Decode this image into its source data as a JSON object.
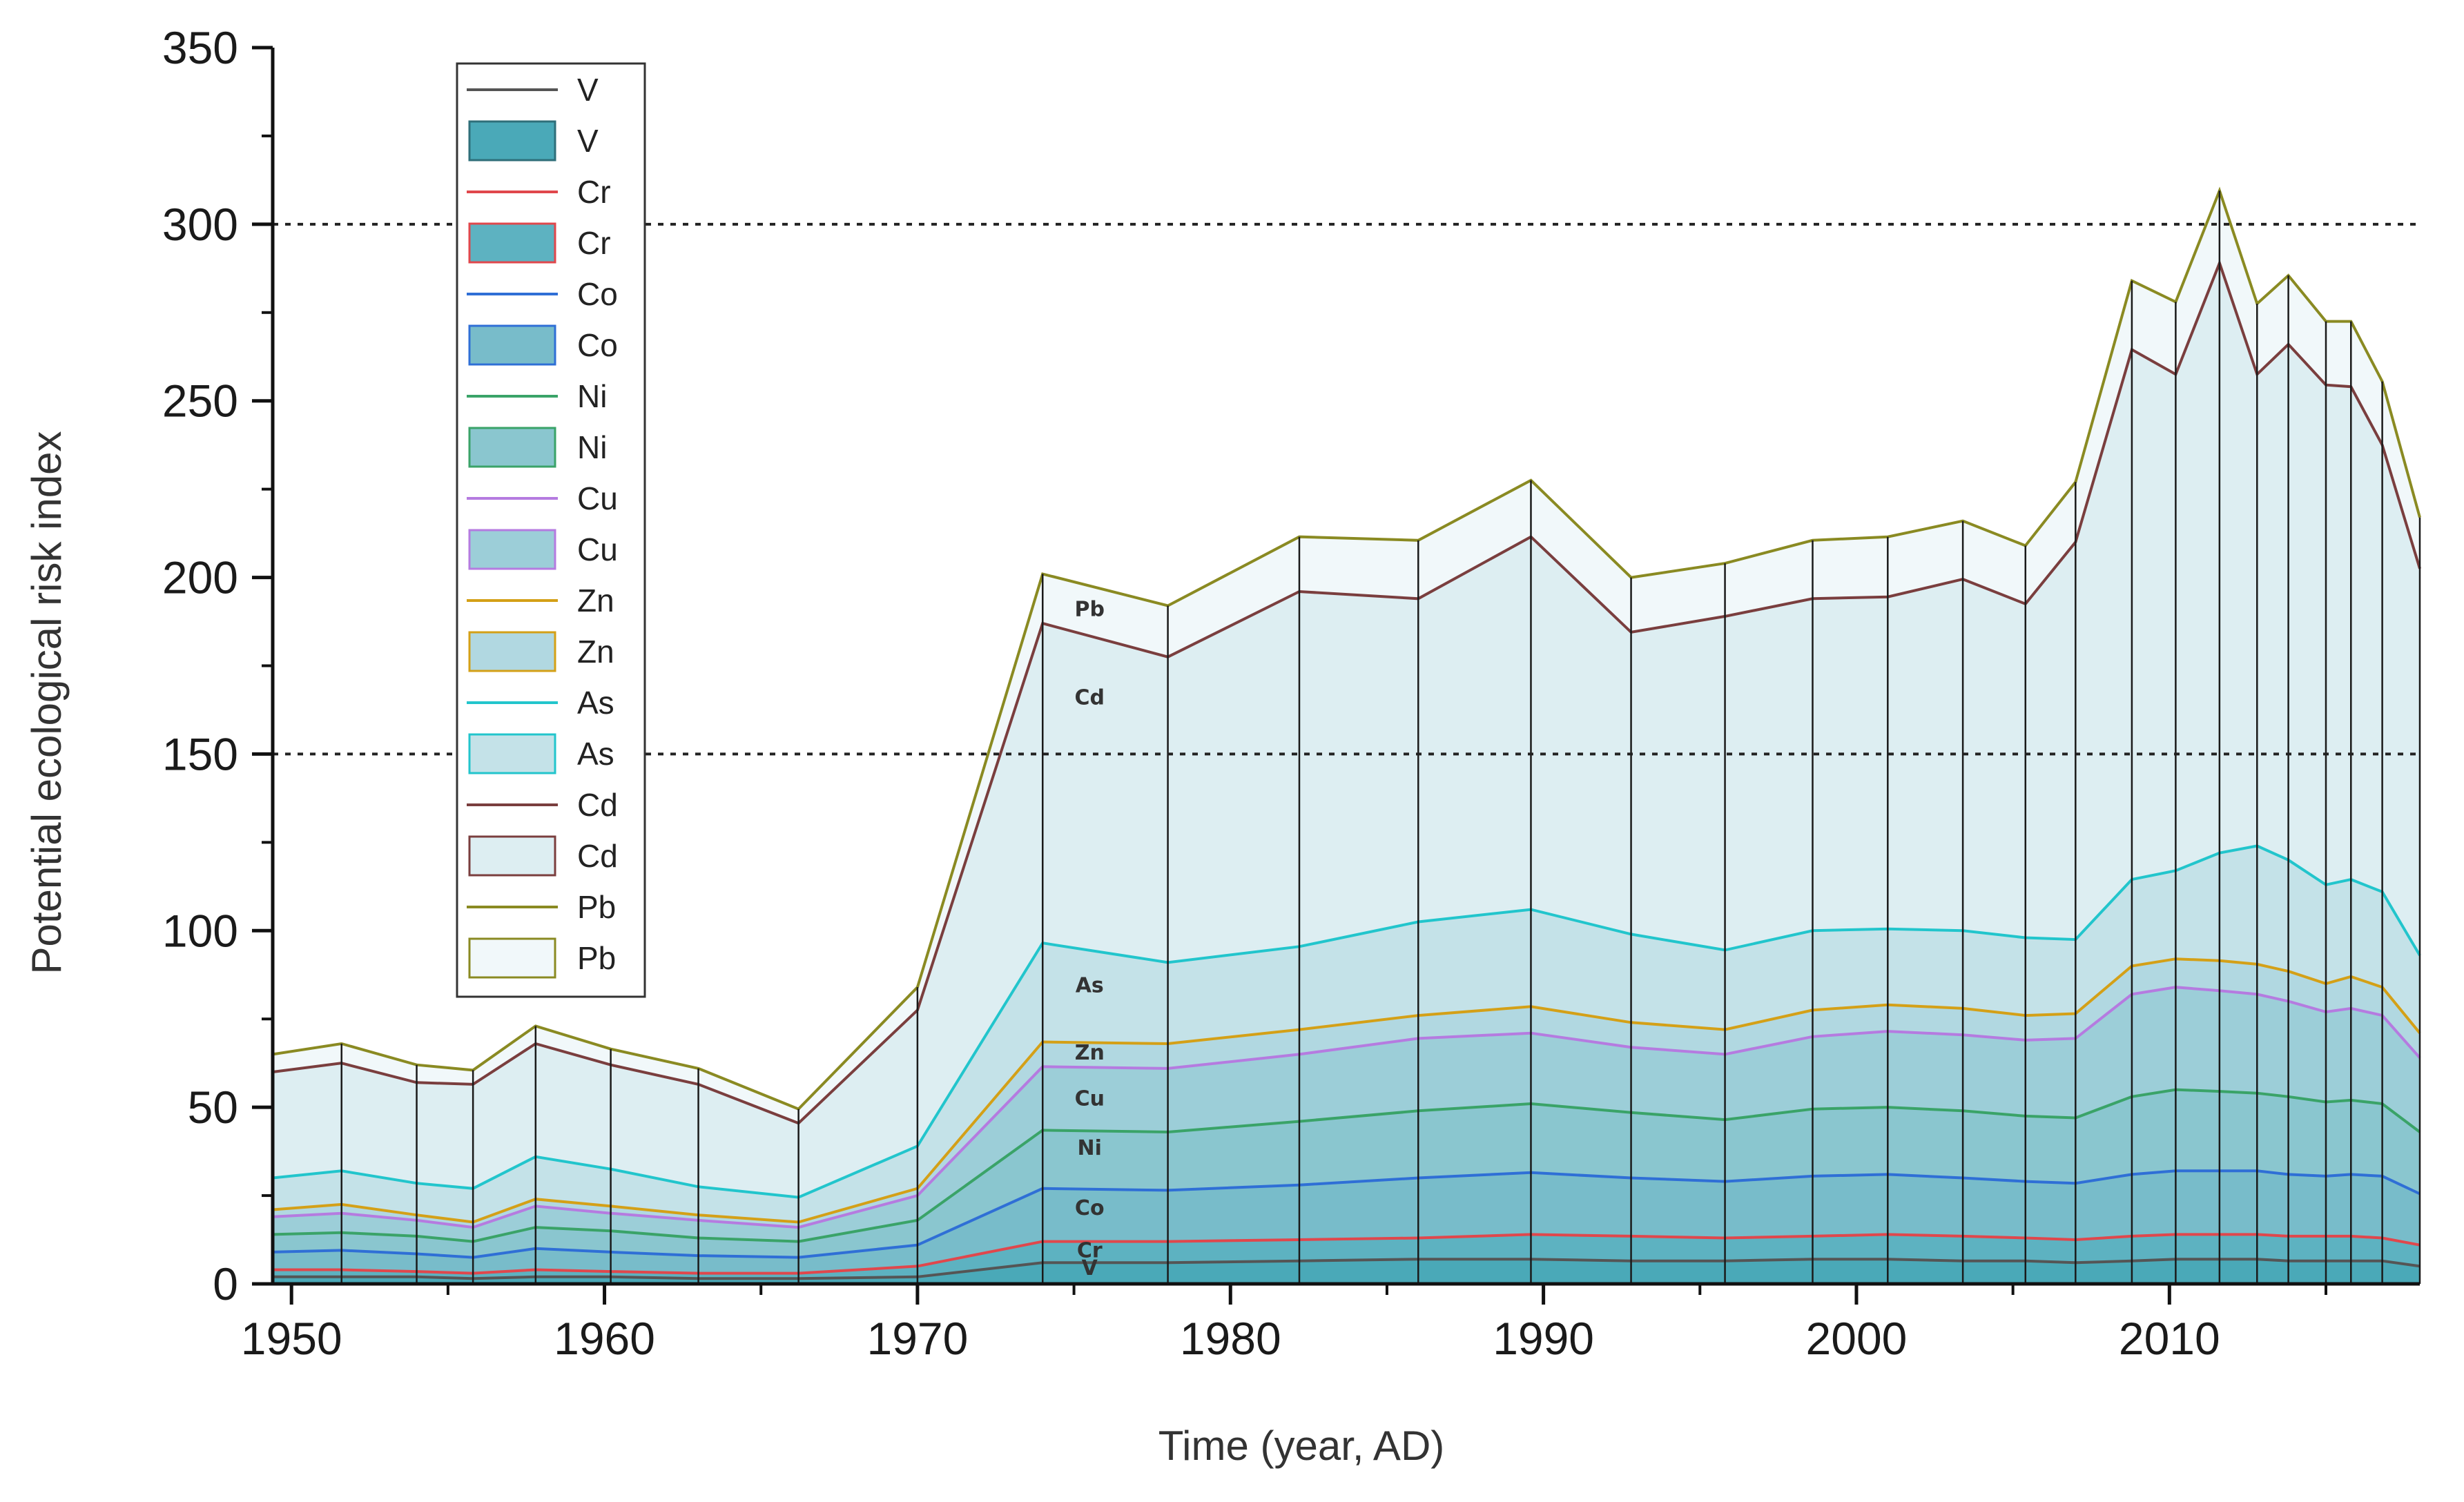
{
  "chart_data": {
    "type": "area",
    "stacked": true,
    "xlabel": "Time (year, AD)",
    "ylabel": "Potential ecological risk index",
    "xlim": [
      1949.4,
      2018
    ],
    "ylim": [
      0,
      350
    ],
    "xticks": [
      1950,
      1960,
      1970,
      1980,
      1990,
      2000,
      2010
    ],
    "yticks": [
      0,
      50,
      100,
      150,
      200,
      250,
      300,
      350
    ],
    "reference_lines": [
      150,
      300
    ],
    "x": [
      1949.4,
      1951.6,
      1954.0,
      1955.8,
      1957.8,
      1960.2,
      1963.0,
      1966.2,
      1970.0,
      1974.0,
      1978.0,
      1982.2,
      1986.0,
      1989.6,
      1992.8,
      1995.8,
      1998.6,
      2001.0,
      2003.4,
      2005.4,
      2007.0,
      2008.8,
      2010.2,
      2011.6,
      2012.8,
      2013.8,
      2015.0,
      2015.8,
      2016.8,
      2018.0
    ],
    "series": [
      {
        "name": "V",
        "line_color": "#555555",
        "fill_color": "#4aa9b8",
        "label": "V",
        "cumulative": [
          2,
          2,
          2,
          1.5,
          2,
          2,
          1.5,
          1.5,
          2,
          6,
          6,
          6.5,
          7,
          7,
          6.5,
          6.5,
          7,
          7,
          6.5,
          6.5,
          6,
          6.5,
          7,
          7,
          7,
          6.5,
          6.5,
          6.5,
          6.5,
          5
        ]
      },
      {
        "name": "Cr",
        "line_color": "#e0474c",
        "fill_color": "#5db2c1",
        "label": "Cr",
        "cumulative": [
          4,
          4,
          3.5,
          3,
          4,
          3.5,
          3,
          3,
          5,
          12,
          12,
          12.5,
          13,
          14,
          13.5,
          13,
          13.5,
          14,
          13.5,
          13,
          12.5,
          13.5,
          14,
          14,
          14,
          13.5,
          13.5,
          13.5,
          13,
          11
        ]
      },
      {
        "name": "Co",
        "line_color": "#2f6fd6",
        "fill_color": "#78bcca",
        "label": "Co",
        "cumulative": [
          9,
          9.5,
          8.5,
          7.5,
          10,
          9,
          8,
          7.5,
          11,
          27,
          26.5,
          28,
          30,
          31.5,
          30,
          29,
          30.5,
          31,
          30,
          29,
          28.5,
          31,
          32,
          32,
          32,
          31,
          30.5,
          31,
          30.5,
          25.5
        ]
      },
      {
        "name": "Ni",
        "line_color": "#3aa368",
        "fill_color": "#8ac6cf",
        "label": "Ni",
        "cumulative": [
          14,
          14.5,
          13.5,
          12,
          16,
          15,
          13,
          12,
          18,
          43.5,
          43,
          46,
          49,
          51,
          48.5,
          46.5,
          49.5,
          50,
          49,
          47.5,
          47,
          53,
          55,
          54.5,
          54,
          53,
          51.5,
          52,
          51,
          43
        ]
      },
      {
        "name": "Cu",
        "line_color": "#b57be0",
        "fill_color": "#9cced8",
        "label": "Cu",
        "cumulative": [
          19,
          20,
          18,
          16,
          22,
          20,
          18,
          16,
          25,
          61.5,
          61,
          65,
          69.5,
          71,
          67,
          65,
          70,
          71.5,
          70.5,
          69,
          69.5,
          82,
          84,
          83,
          82,
          80,
          77,
          78,
          76,
          64
        ]
      },
      {
        "name": "Zn",
        "line_color": "#d4a017",
        "fill_color": "#b1d8e1",
        "label": "Zn",
        "cumulative": [
          21,
          22.5,
          19.5,
          17.5,
          24,
          22,
          19.5,
          17.5,
          27,
          68.5,
          68,
          72,
          76,
          78.5,
          74,
          72,
          77.5,
          79,
          78,
          76,
          76.5,
          90,
          92,
          91.5,
          90.5,
          88.5,
          85,
          87,
          84,
          71
        ]
      },
      {
        "name": "As",
        "line_color": "#22c5cc",
        "fill_color": "#c4e2e8",
        "label": "As",
        "cumulative": [
          30,
          32,
          28.5,
          27,
          36,
          32.5,
          27.5,
          24.5,
          39,
          96.5,
          91,
          95.5,
          102.5,
          106,
          99,
          94.5,
          100,
          100.5,
          100,
          98,
          97.5,
          114.5,
          117,
          122,
          124,
          120,
          113,
          114.5,
          111,
          93
        ]
      },
      {
        "name": "Cd",
        "line_color": "#7a3e3e",
        "fill_color": "#ddeef2",
        "label": "Cd",
        "cumulative": [
          60,
          62.5,
          57,
          56.5,
          68,
          62,
          56.5,
          45.5,
          77.5,
          187,
          177.5,
          196,
          194,
          211.5,
          184.5,
          189,
          194,
          194.5,
          199.5,
          192.5,
          210,
          264.5,
          257.5,
          289,
          257.5,
          266,
          254.5,
          254,
          237.5,
          202.5
        ]
      },
      {
        "name": "Pb",
        "line_color": "#8a8a22",
        "fill_color": "#f1f8fa",
        "label": "Pb",
        "cumulative": [
          65,
          68,
          62,
          60.5,
          73,
          66.5,
          61,
          49.5,
          84,
          201,
          192,
          211.5,
          210.5,
          227.5,
          200,
          204,
          210.5,
          211.5,
          216,
          209,
          227,
          284,
          278,
          309.5,
          277.5,
          285.5,
          272.5,
          272.5,
          255.5,
          217
        ]
      }
    ]
  },
  "legend": [
    {
      "label": "V",
      "kind": "line",
      "color": "#555555"
    },
    {
      "label": "V",
      "kind": "box",
      "fill": "#4aa9b8",
      "stroke": "#2f6f7a"
    },
    {
      "label": "Cr",
      "kind": "line",
      "color": "#e0474c"
    },
    {
      "label": "Cr",
      "kind": "box",
      "fill": "#5db2c1",
      "stroke": "#e0474c"
    },
    {
      "label": "Co",
      "kind": "line",
      "color": "#2f6fd6"
    },
    {
      "label": "Co",
      "kind": "box",
      "fill": "#78bcca",
      "stroke": "#2f6fd6"
    },
    {
      "label": "Ni",
      "kind": "line",
      "color": "#3aa368"
    },
    {
      "label": "Ni",
      "kind": "box",
      "fill": "#8ac6cf",
      "stroke": "#3aa368"
    },
    {
      "label": "Cu",
      "kind": "line",
      "color": "#b57be0"
    },
    {
      "label": "Cu",
      "kind": "box",
      "fill": "#9cced8",
      "stroke": "#b57be0"
    },
    {
      "label": "Zn",
      "kind": "line",
      "color": "#d4a017"
    },
    {
      "label": "Zn",
      "kind": "box",
      "fill": "#b1d8e1",
      "stroke": "#d4a017"
    },
    {
      "label": "As",
      "kind": "line",
      "color": "#22c5cc"
    },
    {
      "label": "As",
      "kind": "box",
      "fill": "#c4e2e8",
      "stroke": "#22c5cc"
    },
    {
      "label": "Cd",
      "kind": "line",
      "color": "#7a3e3e"
    },
    {
      "label": "Cd",
      "kind": "box",
      "fill": "#ddeef2",
      "stroke": "#7a3e3e"
    },
    {
      "label": "Pb",
      "kind": "line",
      "color": "#8a8a22"
    },
    {
      "label": "Pb",
      "kind": "box",
      "fill": "#f1f8fa",
      "stroke": "#8a8a22"
    }
  ]
}
